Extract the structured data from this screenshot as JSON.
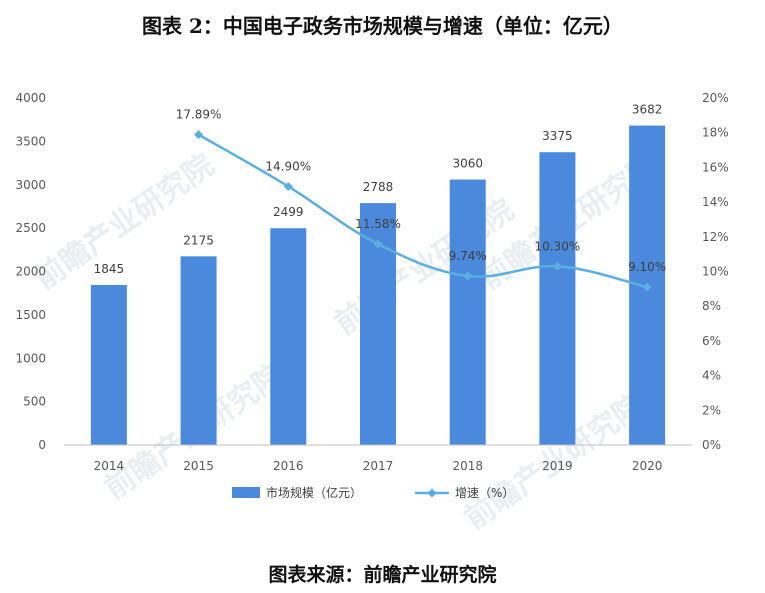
{
  "figure": {
    "title": "图表 2：中国电子政务市场规模与增速（单位：亿元）",
    "source": "图表来源：前瞻产业研究院",
    "watermark": "前瞻产业研究院"
  },
  "colors": {
    "bar": "#4a89dc",
    "line": "#5aaee0",
    "axis": "#bfbfbf"
  },
  "chart_data": {
    "type": "bar",
    "categories": [
      "2014",
      "2015",
      "2016",
      "2017",
      "2018",
      "2019",
      "2020"
    ],
    "series": [
      {
        "name": "市场规模（亿元）",
        "type": "bar",
        "axis": "left",
        "values": [
          1845,
          2175,
          2499,
          2788,
          3060,
          3375,
          3682
        ],
        "labels": [
          "1845",
          "2175",
          "2499",
          "2788",
          "3060",
          "3375",
          "3682"
        ]
      },
      {
        "name": "增速（%）",
        "type": "line",
        "axis": "right",
        "values": [
          null,
          17.89,
          14.9,
          11.58,
          9.74,
          10.3,
          9.1
        ],
        "labels": [
          "",
          "17.89%",
          "14.90%",
          "11.58%",
          "9.74%",
          "10.30%",
          "9.10%"
        ]
      }
    ],
    "ylim_left": [
      0,
      4000
    ],
    "ylim_right": [
      0,
      20
    ],
    "yticks_left": [
      "0",
      "500",
      "1000",
      "1500",
      "2000",
      "2500",
      "3000",
      "3500",
      "4000"
    ],
    "yticks_right": [
      "0%",
      "2%",
      "4%",
      "6%",
      "8%",
      "10%",
      "12%",
      "14%",
      "16%",
      "18%",
      "20%"
    ],
    "grid": false,
    "legend_position": "bottom"
  }
}
